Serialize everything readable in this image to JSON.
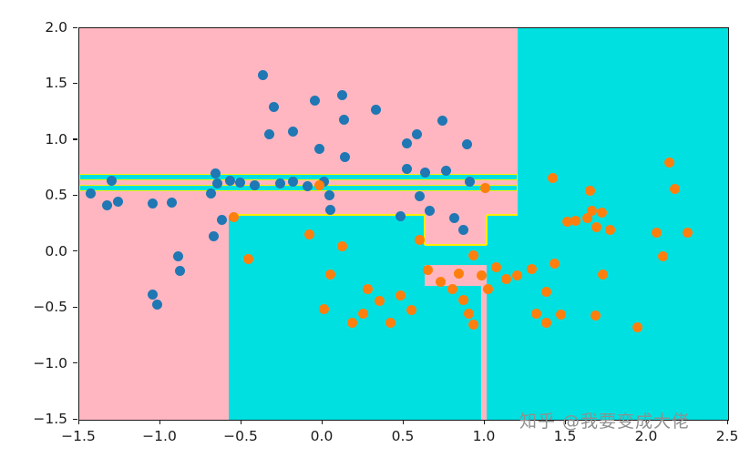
{
  "watermark": {
    "text": "知乎 @我要变成大佬",
    "color": "#8f8f8f"
  },
  "axes": {
    "xlim": [
      -1.5,
      2.5
    ],
    "ylim": [
      -1.5,
      2.0
    ],
    "grid": false,
    "legend": "none",
    "title": "",
    "xticks": [
      {
        "v": -1.5,
        "label": "−1.5"
      },
      {
        "v": -1.0,
        "label": "−1.0"
      },
      {
        "v": -0.5,
        "label": "−0.5"
      },
      {
        "v": 0.0,
        "label": "0.0"
      },
      {
        "v": 0.5,
        "label": "0.5"
      },
      {
        "v": 1.0,
        "label": "1.0"
      },
      {
        "v": 1.5,
        "label": "1.5"
      },
      {
        "v": 2.0,
        "label": "2.0"
      },
      {
        "v": 2.5,
        "label": "2.5"
      }
    ],
    "yticks": [
      {
        "v": 2.0,
        "label": "2.0"
      },
      {
        "v": 1.5,
        "label": "1.5"
      },
      {
        "v": 1.0,
        "label": "1.0"
      },
      {
        "v": 0.5,
        "label": "0.5"
      },
      {
        "v": 0.0,
        "label": "0.0"
      },
      {
        "v": -0.5,
        "label": "−0.5"
      },
      {
        "v": -1.0,
        "label": "−1.0"
      },
      {
        "v": -1.5,
        "label": "−1.5"
      }
    ]
  },
  "chart_data": {
    "type": "scatter",
    "description": "Decision-tree classifier decision regions over a two-moons dataset; pink region = class 0 (blue points), cyan region = class 1 (orange points), yellow segments mark stepped decision boundary",
    "xlabel": "",
    "ylabel": "",
    "xlim": [
      -1.5,
      2.5
    ],
    "ylim": [
      -1.5,
      2.0
    ],
    "colors": {
      "region_class0": "#ffb6c1",
      "region_class1": "#00e0e0",
      "boundary_line": "#ffee00",
      "points_class0": "#1f77b4",
      "points_class1": "#ff7f0e"
    },
    "regions": [
      {
        "name": "region-pink-base",
        "class": 0,
        "x0": -1.5,
        "x1": 1.2,
        "y0": -1.5,
        "y1": 2.0
      },
      {
        "name": "region-cyan-right",
        "class": 1,
        "x0": 1.2,
        "x1": 2.5,
        "y0": -1.5,
        "y1": 2.0
      },
      {
        "name": "region-cyan-stripe-upper",
        "class": 1,
        "x0": -1.5,
        "x1": 1.2,
        "y0": 0.64,
        "y1": 0.7,
        "stroke": true
      },
      {
        "name": "region-cyan-stripe-lower",
        "class": 1,
        "x0": -1.5,
        "x1": 1.2,
        "y0": 0.54,
        "y1": 0.6,
        "stroke": true
      },
      {
        "name": "region-cyan-bottom",
        "class": 1,
        "x0": -0.58,
        "x1": 1.2,
        "y0": -1.5,
        "y1": 0.33
      },
      {
        "name": "region-pink-notch-upper",
        "class": 0,
        "x0": 0.63,
        "x1": 1.01,
        "y0": 0.06,
        "y1": 0.33
      },
      {
        "name": "region-pink-notch-lower",
        "class": 0,
        "x0": 0.63,
        "x1": 1.01,
        "y0": -0.3,
        "y1": -0.12
      },
      {
        "name": "region-pink-vertical-stripe",
        "class": 0,
        "x0": 0.975,
        "x1": 1.01,
        "y0": -1.5,
        "y1": -0.12
      }
    ],
    "boundary_lines": [
      {
        "name": "boundary-h-main",
        "x0": -0.58,
        "y0": 0.33,
        "x1": 0.63,
        "y1": 0.33
      },
      {
        "name": "boundary-v-step",
        "x0": 0.63,
        "y0": 0.06,
        "x1": 0.63,
        "y1": 0.33
      },
      {
        "name": "boundary-h-step",
        "x0": 0.63,
        "y0": 0.06,
        "x1": 1.01,
        "y1": 0.06
      },
      {
        "name": "boundary-v-step-right",
        "x0": 1.01,
        "y0": 0.06,
        "x1": 1.01,
        "y1": 0.33
      },
      {
        "name": "boundary-h-right",
        "x0": 1.01,
        "y0": 0.33,
        "x1": 1.2,
        "y1": 0.33
      }
    ],
    "series": [
      {
        "name": "class-0-blue",
        "color": "#1f77b4",
        "points": [
          [
            -0.37,
            1.58
          ],
          [
            -0.3,
            1.3
          ],
          [
            -0.05,
            1.35
          ],
          [
            0.12,
            1.4
          ],
          [
            0.33,
            1.27
          ],
          [
            0.13,
            1.18
          ],
          [
            -0.33,
            1.05
          ],
          [
            -0.18,
            1.08
          ],
          [
            -0.02,
            0.92
          ],
          [
            0.14,
            0.85
          ],
          [
            0.52,
            0.97
          ],
          [
            0.58,
            1.05
          ],
          [
            0.74,
            1.17
          ],
          [
            0.89,
            0.96
          ],
          [
            0.52,
            0.74
          ],
          [
            0.63,
            0.71
          ],
          [
            0.76,
            0.73
          ],
          [
            0.91,
            0.63
          ],
          [
            0.6,
            0.5
          ],
          [
            0.66,
            0.37
          ],
          [
            0.48,
            0.32
          ],
          [
            0.81,
            0.3
          ],
          [
            0.87,
            0.2
          ],
          [
            -1.43,
            0.52
          ],
          [
            -1.3,
            0.64
          ],
          [
            -1.26,
            0.45
          ],
          [
            -1.33,
            0.42
          ],
          [
            -1.05,
            0.43
          ],
          [
            -0.93,
            0.44
          ],
          [
            -0.66,
            0.7
          ],
          [
            -0.65,
            0.61
          ],
          [
            -0.69,
            0.52
          ],
          [
            -0.57,
            0.64
          ],
          [
            -0.51,
            0.62
          ],
          [
            -0.42,
            0.6
          ],
          [
            -0.26,
            0.61
          ],
          [
            -0.18,
            0.63
          ],
          [
            -0.09,
            0.59
          ],
          [
            0.01,
            0.63
          ],
          [
            0.04,
            0.51
          ],
          [
            0.05,
            0.38
          ],
          [
            -0.62,
            0.29
          ],
          [
            -0.67,
            0.14
          ],
          [
            -0.89,
            -0.04
          ],
          [
            -0.88,
            -0.17
          ],
          [
            -1.05,
            -0.38
          ],
          [
            -1.02,
            -0.47
          ]
        ]
      },
      {
        "name": "class-1-orange",
        "color": "#ff7f0e",
        "points": [
          [
            -0.02,
            0.6
          ],
          [
            1.0,
            0.57
          ],
          [
            -0.55,
            0.31
          ],
          [
            -0.46,
            -0.06
          ],
          [
            -0.08,
            0.16
          ],
          [
            0.12,
            0.05
          ],
          [
            0.05,
            -0.2
          ],
          [
            0.01,
            -0.51
          ],
          [
            0.18,
            -0.63
          ],
          [
            0.25,
            -0.55
          ],
          [
            0.28,
            -0.33
          ],
          [
            0.35,
            -0.44
          ],
          [
            0.42,
            -0.63
          ],
          [
            0.48,
            -0.39
          ],
          [
            0.55,
            -0.52
          ],
          [
            0.6,
            0.11
          ],
          [
            0.65,
            -0.16
          ],
          [
            0.73,
            -0.27
          ],
          [
            0.8,
            -0.33
          ],
          [
            0.84,
            -0.19
          ],
          [
            0.87,
            -0.43
          ],
          [
            0.9,
            -0.55
          ],
          [
            0.93,
            -0.65
          ],
          [
            0.93,
            -0.03
          ],
          [
            0.98,
            -0.21
          ],
          [
            1.02,
            -0.33
          ],
          [
            1.07,
            -0.14
          ],
          [
            1.13,
            -0.24
          ],
          [
            1.2,
            -0.21
          ],
          [
            1.29,
            -0.15
          ],
          [
            1.32,
            -0.55
          ],
          [
            1.38,
            -0.63
          ],
          [
            1.38,
            -0.36
          ],
          [
            1.43,
            -0.1
          ],
          [
            1.47,
            -0.56
          ],
          [
            1.51,
            0.27
          ],
          [
            1.56,
            0.28
          ],
          [
            1.63,
            0.3
          ],
          [
            1.66,
            0.37
          ],
          [
            1.69,
            0.22
          ],
          [
            1.72,
            0.35
          ],
          [
            1.77,
            0.2
          ],
          [
            1.42,
            0.66
          ],
          [
            1.65,
            0.55
          ],
          [
            1.68,
            -0.57
          ],
          [
            1.73,
            -0.2
          ],
          [
            1.94,
            -0.67
          ],
          [
            2.06,
            0.17
          ],
          [
            2.1,
            -0.04
          ],
          [
            2.14,
            0.8
          ],
          [
            2.17,
            0.56
          ],
          [
            2.25,
            0.17
          ]
        ]
      }
    ]
  }
}
